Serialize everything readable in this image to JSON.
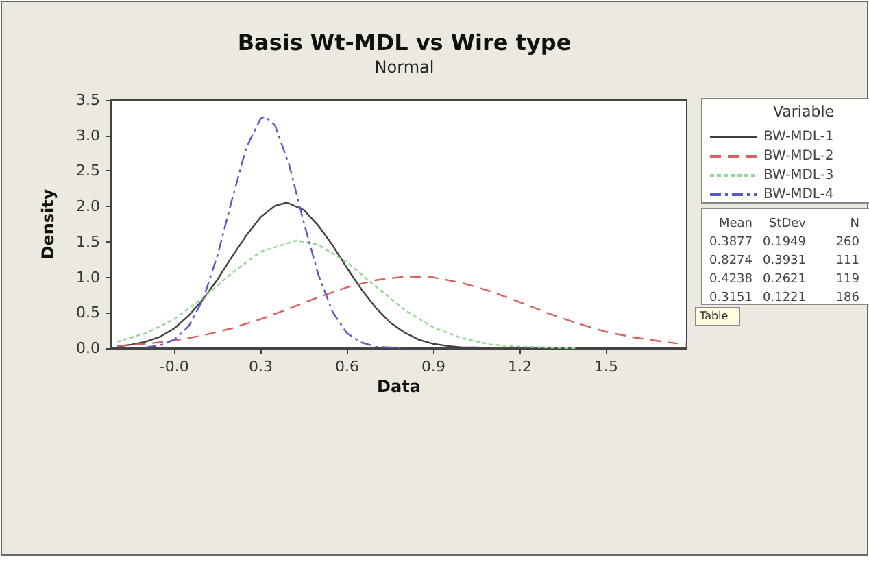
{
  "chart_data": {
    "type": "line",
    "title": "Basis Wt-MDL vs Wire type",
    "subtitle": "Normal",
    "xlabel": "Data",
    "ylabel": "Density",
    "legend_title": "Variable",
    "legend": "right",
    "grid": false,
    "marker": "none",
    "xlim": [
      -0.22,
      1.78
    ],
    "ylim": [
      0,
      3.5
    ],
    "xticks": [
      {
        "value": 0,
        "label": "-0.0"
      },
      {
        "value": 0.3,
        "label": "0.3"
      },
      {
        "value": 0.6,
        "label": "0.6"
      },
      {
        "value": 0.9,
        "label": "0.9"
      },
      {
        "value": 1.2,
        "label": "1.2"
      },
      {
        "value": 1.5,
        "label": "1.5"
      }
    ],
    "yticks": [
      {
        "value": 0,
        "label": "0.0"
      },
      {
        "value": 0.5,
        "label": "0.5"
      },
      {
        "value": 1,
        "label": "1.0"
      },
      {
        "value": 1.5,
        "label": "1.5"
      },
      {
        "value": 2,
        "label": "2.0"
      },
      {
        "value": 2.5,
        "label": "2.5"
      },
      {
        "value": 3,
        "label": "3.0"
      },
      {
        "value": 3.5,
        "label": "3.5"
      }
    ],
    "annotations": [
      "Mean StDev N",
      "0.3877 0.1949 260",
      "0.8274 0.3931 111",
      "0.4238 0.2621 119",
      "0.3151 0.1221 186",
      "Table"
    ],
    "series": [
      {
        "name": "BW-MDL-1",
        "color": "#404040",
        "line_style": "solid",
        "x": [
          -0.2,
          -0.15,
          -0.1,
          -0.05,
          0,
          0.05,
          0.1,
          0.15,
          0.2,
          0.25,
          0.3,
          0.35,
          0.3877,
          0.4,
          0.45,
          0.5,
          0.55,
          0.6,
          0.65,
          0.7,
          0.75,
          0.8,
          0.85,
          0.9,
          0.95,
          1,
          1.05,
          1.1
        ],
        "values": [
          0.02,
          0.05,
          0.09,
          0.16,
          0.28,
          0.46,
          0.69,
          0.97,
          1.29,
          1.59,
          1.85,
          2.01,
          2.05,
          2.04,
          1.95,
          1.73,
          1.45,
          1.13,
          0.83,
          0.57,
          0.36,
          0.22,
          0.12,
          0.06,
          0.03,
          0.01,
          0.01,
          0
        ]
      },
      {
        "name": "BW-MDL-2",
        "color": "#d86060",
        "line_style": "dashed",
        "x": [
          -0.2,
          -0.1,
          0,
          0.1,
          0.2,
          0.3,
          0.4,
          0.5,
          0.6,
          0.7,
          0.8,
          0.8274,
          0.9,
          1,
          1.1,
          1.2,
          1.3,
          1.4,
          1.5,
          1.6,
          1.7,
          1.78
        ],
        "values": [
          0.03,
          0.06,
          0.11,
          0.18,
          0.28,
          0.41,
          0.56,
          0.72,
          0.86,
          0.96,
          1.01,
          1.01,
          1,
          0.92,
          0.8,
          0.65,
          0.49,
          0.35,
          0.23,
          0.15,
          0.09,
          0.05
        ]
      },
      {
        "name": "BW-MDL-3",
        "color": "#90d890",
        "line_style": "dotted",
        "x": [
          -0.2,
          -0.1,
          0,
          0.1,
          0.2,
          0.3,
          0.4238,
          0.5,
          0.6,
          0.7,
          0.8,
          0.9,
          1,
          1.1,
          1.2,
          1.3,
          1.4
        ],
        "values": [
          0.09,
          0.21,
          0.41,
          0.71,
          1.06,
          1.36,
          1.52,
          1.46,
          1.21,
          0.87,
          0.54,
          0.29,
          0.14,
          0.05,
          0.02,
          0.01,
          0
        ]
      },
      {
        "name": "BW-MDL-4",
        "color": "#5858c8",
        "line_style": "dashdot",
        "x": [
          -0.1,
          -0.05,
          0,
          0.05,
          0.1,
          0.15,
          0.2,
          0.25,
          0.3,
          0.315,
          0.35,
          0.4,
          0.45,
          0.5,
          0.55,
          0.6,
          0.65,
          0.7,
          0.75,
          0.8
        ],
        "values": [
          0.01,
          0.04,
          0.12,
          0.31,
          0.69,
          1.31,
          2.09,
          2.83,
          3.24,
          3.27,
          3.14,
          2.57,
          1.77,
          1.04,
          0.51,
          0.21,
          0.08,
          0.02,
          0.01,
          0
        ]
      }
    ]
  }
}
